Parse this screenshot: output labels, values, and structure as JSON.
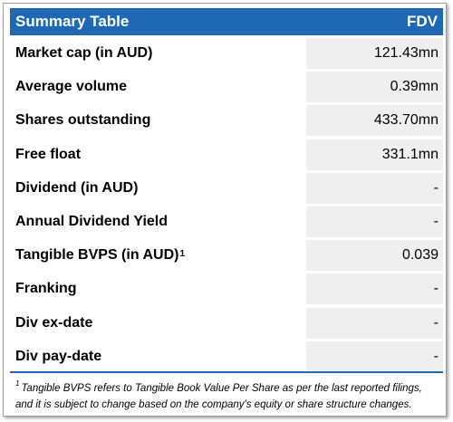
{
  "header": {
    "title": "Summary Table",
    "ticker": "FDV"
  },
  "rows": [
    {
      "label": "Market cap (in AUD)",
      "value": "121.43mn"
    },
    {
      "label": "Average volume",
      "value": "0.39mn"
    },
    {
      "label": "Shares outstanding",
      "value": "433.70mn"
    },
    {
      "label": "Free float",
      "value": "331.1mn"
    },
    {
      "label": "Dividend (in AUD)",
      "value": "-"
    },
    {
      "label": "Annual Dividend Yield",
      "value": "-"
    },
    {
      "label": "Tangible BVPS (in AUD)",
      "sup": "1",
      "value": "0.039"
    },
    {
      "label": "Franking",
      "value": "-"
    },
    {
      "label": "Div ex-date",
      "value": "-"
    },
    {
      "label": "Div pay-date",
      "value": "-"
    }
  ],
  "footnote": {
    "marker": "1",
    "line1": "Tangible BVPS refers to Tangible Book Value Per Share as per the last reported filings,",
    "line2": "and it is subject to change based on the company's equity or share structure changes."
  },
  "colors": {
    "header_bg": "#1f68b3",
    "value_bg": "#efefef"
  }
}
